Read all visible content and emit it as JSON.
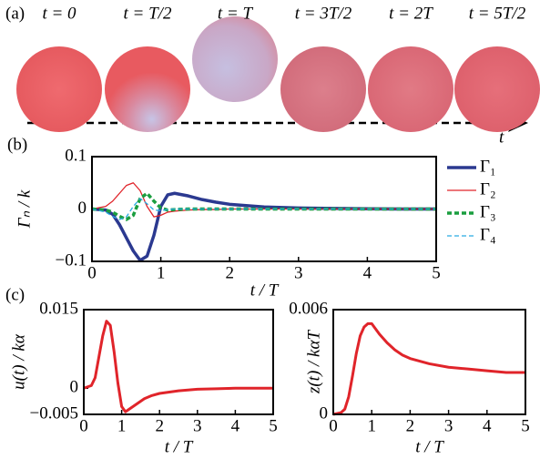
{
  "panel_a": {
    "label": "(a)",
    "frames": [
      "t = 0",
      "t = T/2",
      "t = T",
      "t = 3T/2",
      "t = 2T",
      "t = 5T/2"
    ],
    "axis_label": "t"
  },
  "chart_data": [
    {
      "type": "line",
      "panel_label": "(b)",
      "xlabel": "t / T",
      "ylabel": "Γₙ / k",
      "x": [
        0,
        0.2,
        0.3,
        0.4,
        0.5,
        0.6,
        0.7,
        0.8,
        0.9,
        1.0,
        1.1,
        1.2,
        1.4,
        1.6,
        1.8,
        2,
        2.5,
        3,
        3.5,
        4,
        4.5,
        5
      ],
      "xlim": [
        0,
        5
      ],
      "xticks": [
        0,
        1,
        2,
        3,
        4,
        5
      ],
      "ylim": [
        -0.1,
        0.1
      ],
      "yticks": [
        {
          "value": -0.1,
          "label": "−0.1"
        },
        0,
        0.1
      ],
      "legend": "right",
      "series": [
        {
          "name": "Γ₁",
          "color": "#2b3990",
          "line_width": 3.5,
          "dashed": false,
          "values": [
            0,
            -0.002,
            -0.01,
            -0.03,
            -0.055,
            -0.08,
            -0.098,
            -0.09,
            -0.05,
            0.005,
            0.027,
            0.03,
            0.025,
            0.018,
            0.013,
            0.009,
            0.004,
            0.002,
            0.001,
            0.0005,
            0,
            0
          ]
        },
        {
          "name": "Γ₂",
          "color": "#e0242a",
          "line_width": 1.3,
          "dashed": false,
          "values": [
            0,
            0.005,
            0.015,
            0.03,
            0.045,
            0.05,
            0.035,
            0.005,
            -0.015,
            -0.012,
            -0.006,
            -0.004,
            -0.002,
            -0.001,
            -0.001,
            0,
            0,
            0,
            0,
            0,
            0,
            0
          ]
        },
        {
          "name": "Γ₃",
          "color": "#1a9e3f",
          "line_width": 3.5,
          "dashed": true,
          "values": [
            0,
            -0.002,
            -0.006,
            -0.014,
            -0.02,
            -0.012,
            0.02,
            0.03,
            0.015,
            0.002,
            -0.002,
            -0.001,
            0,
            0,
            0,
            0,
            0,
            0,
            0,
            0,
            0,
            0
          ]
        },
        {
          "name": "Γ₄",
          "color": "#29abe2",
          "line_width": 1.3,
          "dashed": true,
          "values": [
            0,
            -0.006,
            -0.014,
            -0.02,
            -0.015,
            0.005,
            0.02,
            0.01,
            -0.002,
            -0.003,
            -0.001,
            0,
            0,
            0,
            0,
            0,
            0,
            0,
            0,
            0,
            0,
            0
          ]
        }
      ]
    },
    {
      "type": "line",
      "panel_label": "(c)",
      "xlabel": "t / T",
      "ylabel": "u(t) / kα",
      "x": [
        0,
        0.2,
        0.3,
        0.4,
        0.5,
        0.6,
        0.7,
        0.8,
        0.9,
        1.0,
        1.1,
        1.2,
        1.4,
        1.6,
        1.8,
        2,
        2.5,
        3,
        3.5,
        4,
        4.5,
        5
      ],
      "xlim": [
        0,
        5
      ],
      "xticks": [
        0,
        1,
        2,
        3,
        4,
        5
      ],
      "ylim": [
        -0.005,
        0.015
      ],
      "yticks": [
        {
          "value": -0.005,
          "label": "−0.005"
        },
        0,
        0.015
      ],
      "color": "#e0242a",
      "values": [
        0,
        0.0005,
        0.002,
        0.006,
        0.01,
        0.0128,
        0.012,
        0.007,
        0.001,
        -0.0035,
        -0.0045,
        -0.004,
        -0.003,
        -0.002,
        -0.0014,
        -0.001,
        -0.0005,
        -0.0002,
        -0.0001,
        0,
        0,
        0
      ]
    },
    {
      "type": "line",
      "xlabel": "t / T",
      "ylabel": "z(t) / kαT",
      "x": [
        0,
        0.2,
        0.3,
        0.4,
        0.5,
        0.6,
        0.7,
        0.8,
        0.9,
        1.0,
        1.1,
        1.2,
        1.4,
        1.6,
        1.8,
        2,
        2.5,
        3,
        3.5,
        4,
        4.5,
        5
      ],
      "xlim": [
        0,
        5
      ],
      "xticks": [
        0,
        1,
        2,
        3,
        4,
        5
      ],
      "ylim": [
        0,
        0.006
      ],
      "yticks": [
        0,
        0.006
      ],
      "color": "#e0242a",
      "values": [
        0,
        0.0001,
        0.0003,
        0.001,
        0.0022,
        0.0035,
        0.0045,
        0.005,
        0.0052,
        0.0052,
        0.0049,
        0.0046,
        0.0041,
        0.0037,
        0.0034,
        0.0032,
        0.0029,
        0.0027,
        0.0026,
        0.0025,
        0.0024,
        0.0024
      ]
    }
  ]
}
